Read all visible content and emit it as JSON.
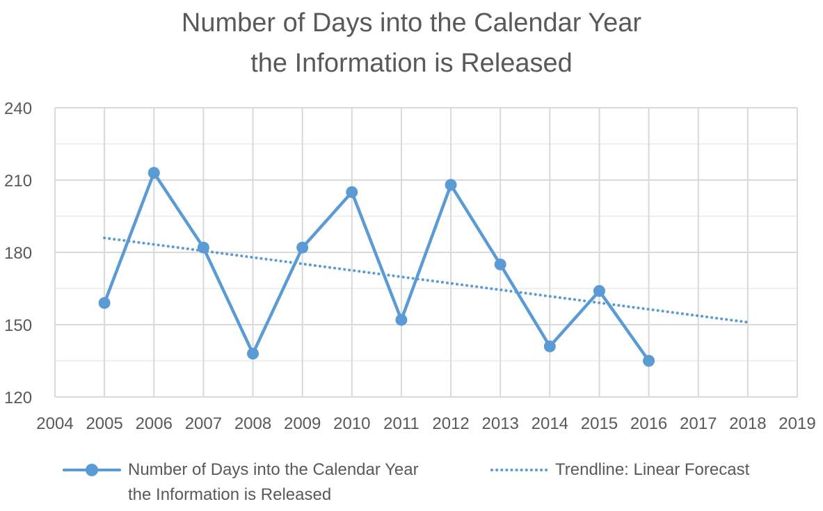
{
  "chart_data": {
    "type": "line",
    "title_lines": [
      "Number of Days into the Calendar Year",
      "the Information is Released"
    ],
    "x": [
      2005,
      2006,
      2007,
      2008,
      2009,
      2010,
      2011,
      2012,
      2013,
      2014,
      2015,
      2016
    ],
    "series": [
      {
        "name": "Number of Days into the Calendar Year the Information is Released",
        "name_lines": [
          "Number of Days into the Calendar Year",
          "the Information is Released"
        ],
        "values": [
          159,
          213,
          182,
          138,
          182,
          205,
          152,
          208,
          175,
          141,
          164,
          135
        ],
        "color": "#5b9bd5",
        "marker": "circle"
      }
    ],
    "trendline": {
      "name": "Trendline: Linear Forecast",
      "type": "linear",
      "x_range": [
        2005,
        2018
      ],
      "y_values": [
        186,
        151
      ],
      "style": "dotted",
      "color": "#5b9bd5"
    },
    "xlim": [
      2004,
      2019
    ],
    "ylim": [
      120,
      240
    ],
    "x_ticks": [
      "2004",
      "2005",
      "2006",
      "2007",
      "2008",
      "2009",
      "2010",
      "2011",
      "2012",
      "2013",
      "2014",
      "2015",
      "2016",
      "2017",
      "2018",
      "2019"
    ],
    "y_ticks": [
      "120",
      "150",
      "180",
      "210",
      "240"
    ],
    "grid": true,
    "legend_position": "bottom"
  }
}
